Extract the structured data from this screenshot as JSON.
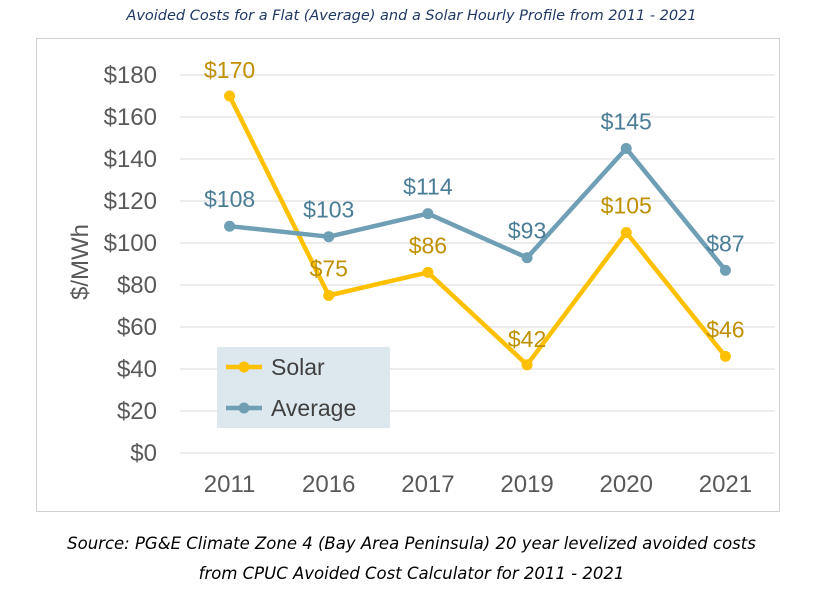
{
  "title": "Avoided Costs for a Flat (Average) and a Solar Hourly Profile from 2011 - 2021",
  "source_line1": "Source: PG&E Climate Zone 4 (Bay Area Peninsula) 20 year levelized avoided costs",
  "source_line2": "from CPUC Avoided Cost Calculator for 2011 - 2021",
  "chart_data": {
    "type": "line",
    "title": "",
    "xlabel": "",
    "ylabel": "$/MWh",
    "categories": [
      "2011",
      "2016",
      "2017",
      "2019",
      "2020",
      "2021"
    ],
    "ylim": [
      0,
      180
    ],
    "yticks": [
      "$0",
      "$20",
      "$40",
      "$60",
      "$80",
      "$100",
      "$120",
      "$140",
      "$160",
      "$180"
    ],
    "ytick_values": [
      0,
      20,
      40,
      60,
      80,
      100,
      120,
      140,
      160,
      180
    ],
    "grid": true,
    "legend": "bottom-left",
    "series": [
      {
        "name": "Solar",
        "color": "#ffc000",
        "label_color": "#bf9000",
        "values": [
          170,
          75,
          86,
          42,
          105,
          46
        ],
        "labels": [
          "$170",
          "$75",
          "$86",
          "$42",
          "$105",
          "$46"
        ]
      },
      {
        "name": "Average",
        "color": "#6e9fb4",
        "label_color": "#4a7d96",
        "values": [
          108,
          103,
          114,
          93,
          145,
          87
        ],
        "labels": [
          "$108",
          "$103",
          "$114",
          "$93",
          "$145",
          "$87"
        ]
      }
    ]
  }
}
